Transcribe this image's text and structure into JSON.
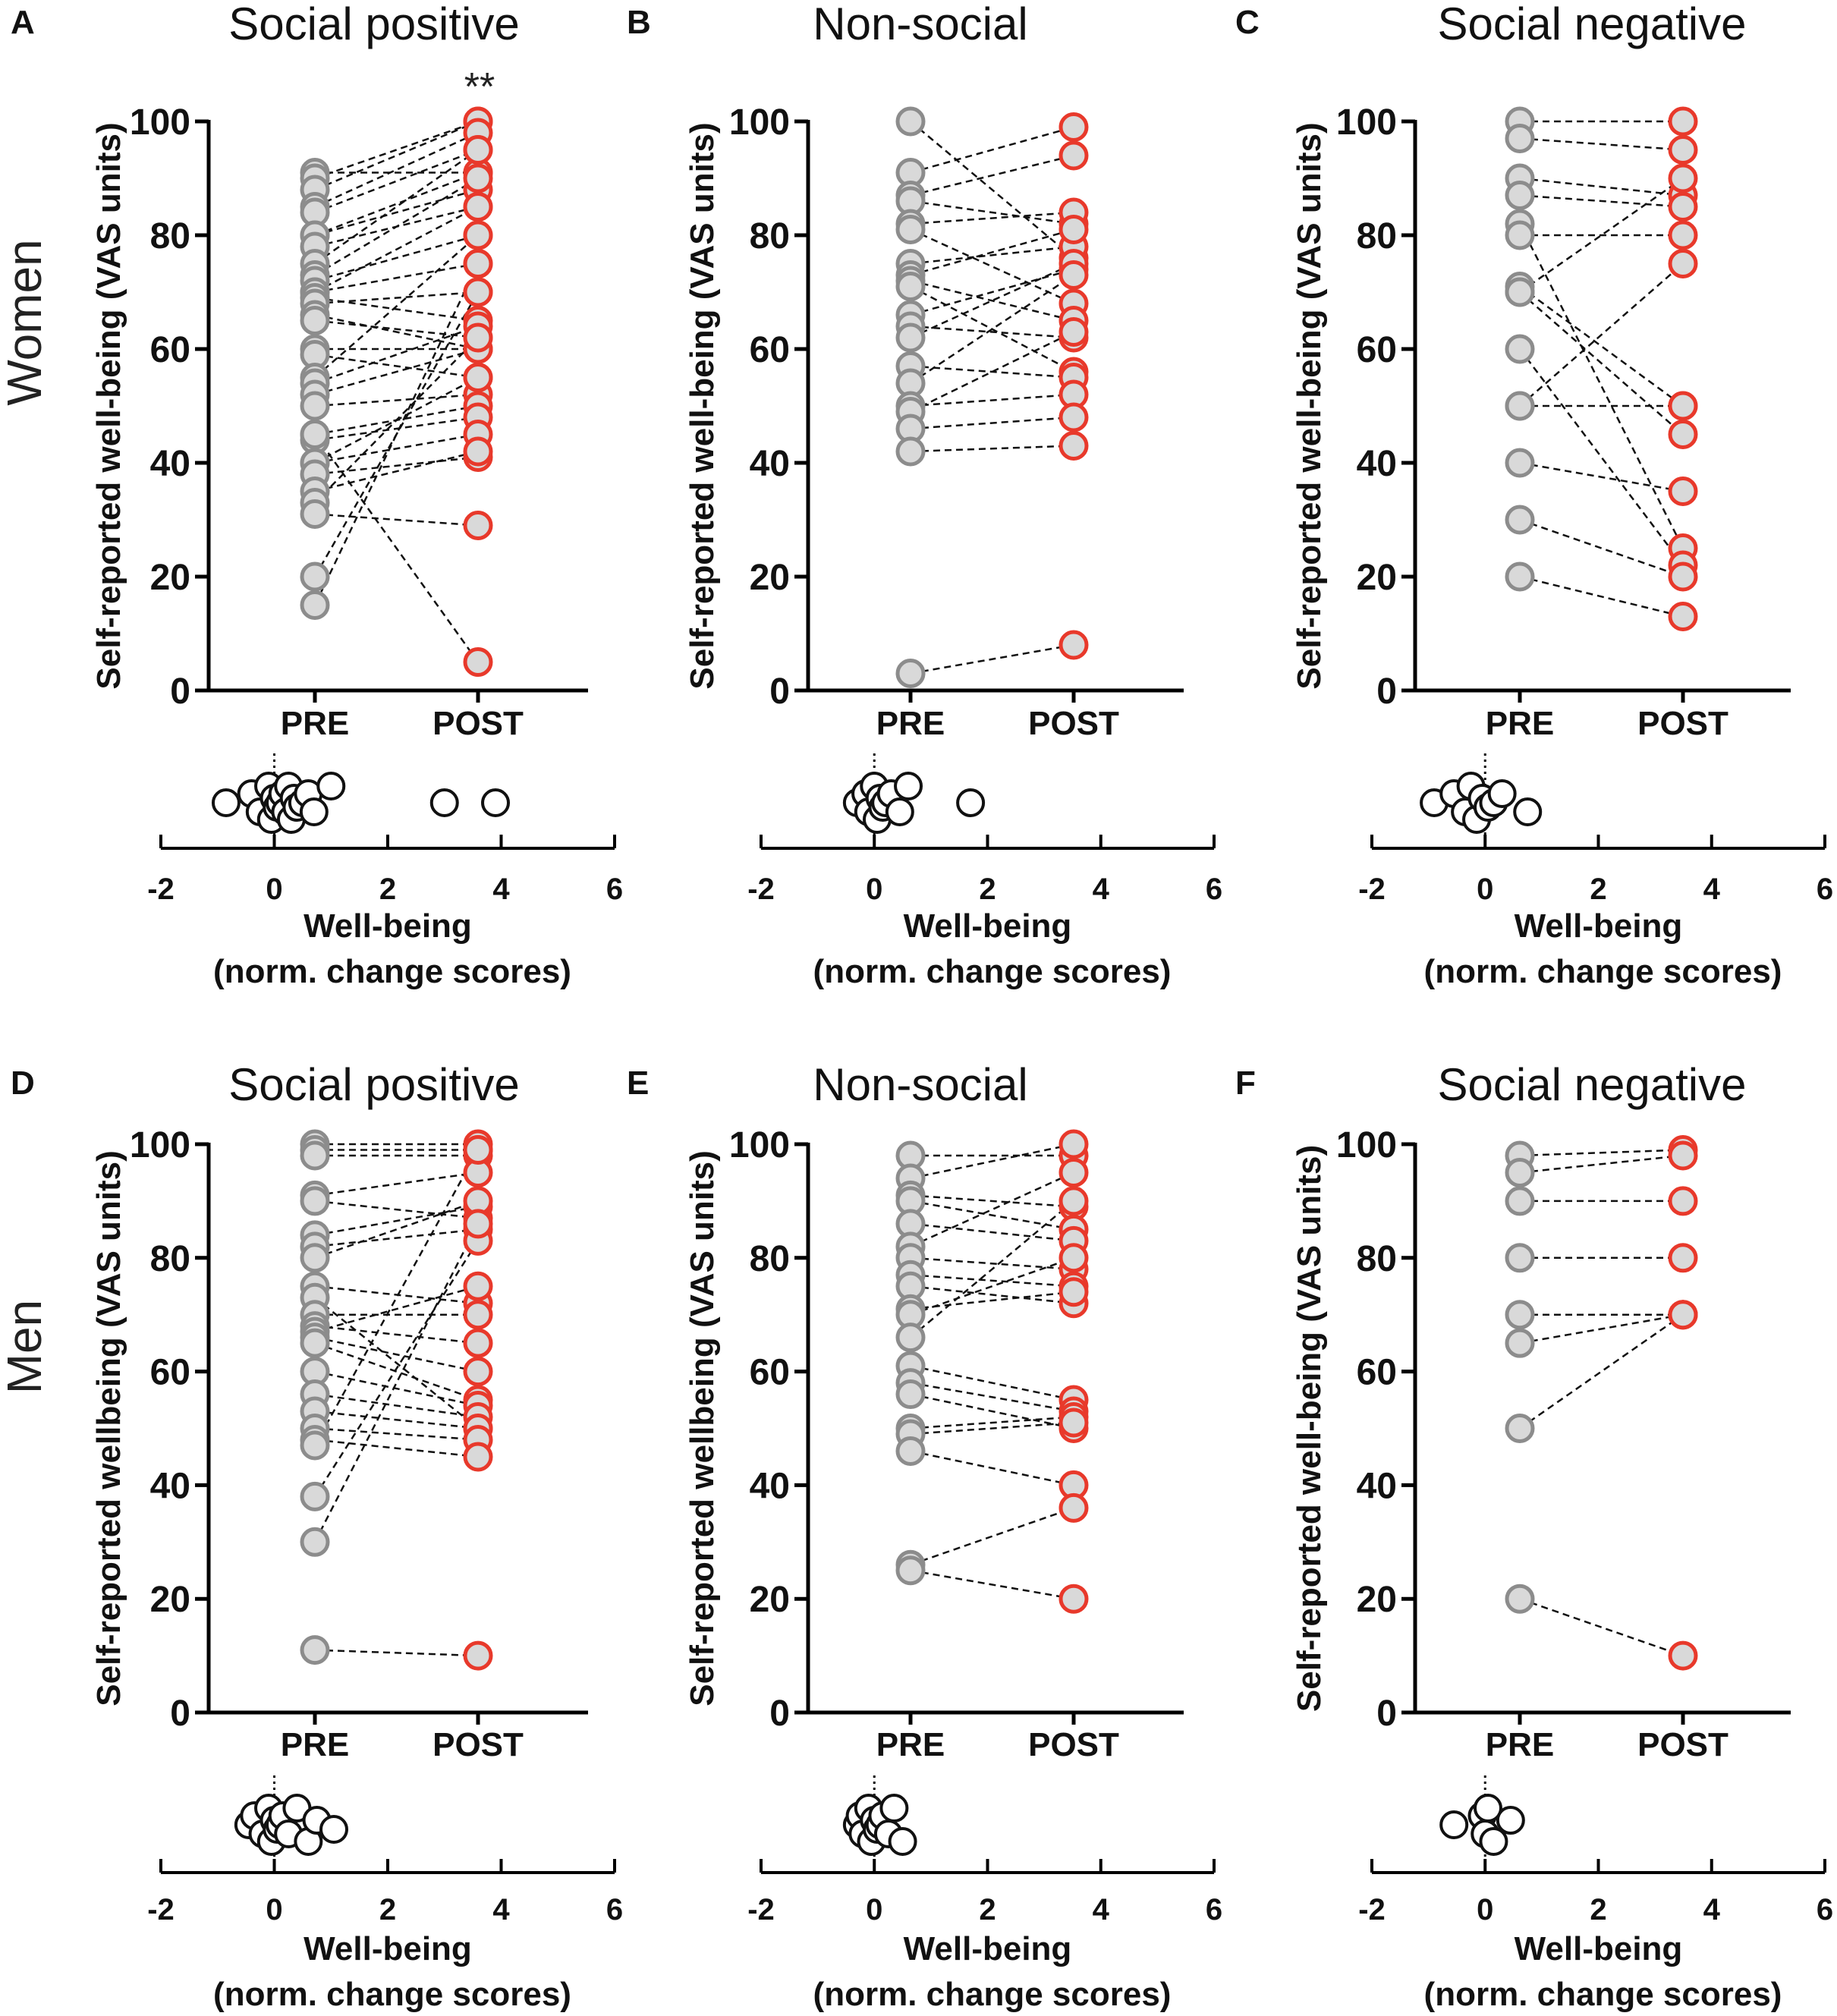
{
  "row_labels": [
    "Women",
    "Men"
  ],
  "chart_data": [
    {
      "type": "paired-dot",
      "panel": "A",
      "title": "Social positive",
      "ylabel": "Self-reported well-being (VAS units)",
      "categories": [
        "PRE",
        "POST"
      ],
      "ylim": [
        0,
        100
      ],
      "yticks": [
        0,
        20,
        40,
        60,
        80,
        100
      ],
      "significance": "**",
      "pairs": [
        [
          91,
          91
        ],
        [
          90,
          100
        ],
        [
          88,
          100
        ],
        [
          85,
          98
        ],
        [
          84,
          95
        ],
        [
          80,
          88
        ],
        [
          80,
          91
        ],
        [
          78,
          85
        ],
        [
          75,
          95
        ],
        [
          73,
          90
        ],
        [
          72,
          80
        ],
        [
          70,
          75
        ],
        [
          70,
          85
        ],
        [
          69,
          65
        ],
        [
          68,
          70
        ],
        [
          66,
          60
        ],
        [
          65,
          62
        ],
        [
          60,
          60
        ],
        [
          59,
          55
        ],
        [
          55,
          80
        ],
        [
          54,
          64
        ],
        [
          52,
          60
        ],
        [
          50,
          52
        ],
        [
          45,
          50
        ],
        [
          44,
          48
        ],
        [
          40,
          55
        ],
        [
          40,
          45
        ],
        [
          38,
          41
        ],
        [
          35,
          42
        ],
        [
          33,
          62
        ],
        [
          31,
          29
        ],
        [
          20,
          70
        ],
        [
          15,
          75
        ],
        [
          45,
          5
        ]
      ],
      "change_scores": [
        -0.85,
        -0.4,
        -0.25,
        -0.1,
        -0.05,
        0,
        0.05,
        0.1,
        0.15,
        0.2,
        0.25,
        0.3,
        0.35,
        0.4,
        0.5,
        0.6,
        0.7,
        1.0,
        3.0,
        3.9
      ],
      "xlabel": "Well-being",
      "xlabel2": "(norm. change scores)",
      "xticks": [
        -2,
        0,
        2,
        4,
        6
      ]
    },
    {
      "type": "paired-dot",
      "panel": "B",
      "title": "Non-social",
      "ylabel": "Self-reported well-being (VAS units)",
      "categories": [
        "PRE",
        "POST"
      ],
      "ylim": [
        0,
        100
      ],
      "yticks": [
        0,
        20,
        40,
        60,
        80,
        100
      ],
      "pairs": [
        [
          100,
          76
        ],
        [
          91,
          99
        ],
        [
          87,
          94
        ],
        [
          86,
          82
        ],
        [
          82,
          84
        ],
        [
          81,
          68
        ],
        [
          75,
          78
        ],
        [
          73,
          81
        ],
        [
          72,
          65
        ],
        [
          71,
          56
        ],
        [
          66,
          74
        ],
        [
          64,
          62
        ],
        [
          62,
          75
        ],
        [
          57,
          55
        ],
        [
          54,
          73
        ],
        [
          50,
          52
        ],
        [
          49,
          63
        ],
        [
          46,
          48
        ],
        [
          42,
          43
        ],
        [
          3,
          8
        ]
      ],
      "change_scores": [
        -0.3,
        -0.15,
        -0.1,
        0,
        0.05,
        0.1,
        0.15,
        0.2,
        0.3,
        0.45,
        0.6,
        1.7
      ],
      "xlabel": "Well-being",
      "xlabel2": "(norm. change scores)",
      "xticks": [
        -2,
        0,
        2,
        4,
        6
      ]
    },
    {
      "type": "paired-dot",
      "panel": "C",
      "title": "Social negative",
      "ylabel": "Self-reported well-being (VAS units)",
      "categories": [
        "PRE",
        "POST"
      ],
      "ylim": [
        0,
        100
      ],
      "yticks": [
        0,
        20,
        40,
        60,
        80,
        100
      ],
      "pairs": [
        [
          100,
          100
        ],
        [
          97,
          95
        ],
        [
          90,
          87
        ],
        [
          87,
          85
        ],
        [
          82,
          25
        ],
        [
          80,
          80
        ],
        [
          71,
          50
        ],
        [
          70,
          90
        ],
        [
          70,
          45
        ],
        [
          60,
          22
        ],
        [
          50,
          50
        ],
        [
          50,
          75
        ],
        [
          40,
          35
        ],
        [
          30,
          20
        ],
        [
          20,
          13
        ]
      ],
      "change_scores": [
        -0.9,
        -0.55,
        -0.35,
        -0.25,
        -0.15,
        -0.05,
        0.05,
        0.15,
        0.3,
        0.75
      ],
      "xlabel": "Well-being",
      "xlabel2": "(norm. change scores)",
      "xticks": [
        -2,
        0,
        2,
        4,
        6
      ]
    },
    {
      "type": "paired-dot",
      "panel": "D",
      "title": "Social positive",
      "ylabel": "Self-reported wellbeing (VAS units)",
      "categories": [
        "PRE",
        "POST"
      ],
      "ylim": [
        0,
        100
      ],
      "yticks": [
        0,
        20,
        40,
        60,
        80,
        100
      ],
      "pairs": [
        [
          100,
          100
        ],
        [
          99,
          99
        ],
        [
          98,
          98
        ],
        [
          91,
          95
        ],
        [
          90,
          87
        ],
        [
          84,
          89
        ],
        [
          82,
          85
        ],
        [
          80,
          90
        ],
        [
          75,
          72
        ],
        [
          73,
          50
        ],
        [
          70,
          70
        ],
        [
          68,
          65
        ],
        [
          67,
          75
        ],
        [
          66,
          60
        ],
        [
          65,
          55
        ],
        [
          60,
          54
        ],
        [
          56,
          52
        ],
        [
          53,
          50
        ],
        [
          50,
          48
        ],
        [
          48,
          45
        ],
        [
          47,
          99
        ],
        [
          38,
          83
        ],
        [
          30,
          86
        ],
        [
          11,
          10
        ]
      ],
      "change_scores": [
        -0.45,
        -0.35,
        -0.2,
        -0.1,
        -0.05,
        0,
        0.05,
        0.1,
        0.15,
        0.25,
        0.4,
        0.6,
        0.75,
        1.05
      ],
      "xlabel": "Well-being",
      "xlabel2": "(norm. change scores)",
      "xticks": [
        -2,
        0,
        2,
        4,
        6
      ]
    },
    {
      "type": "paired-dot",
      "panel": "E",
      "title": "Non-social",
      "ylabel": "Self-reported wellbeing (VAS units)",
      "categories": [
        "PRE",
        "POST"
      ],
      "ylim": [
        0,
        100
      ],
      "yticks": [
        0,
        20,
        40,
        60,
        80,
        100
      ],
      "pairs": [
        [
          98,
          98
        ],
        [
          94,
          100
        ],
        [
          91,
          89
        ],
        [
          90,
          85
        ],
        [
          86,
          83
        ],
        [
          82,
          95
        ],
        [
          80,
          78
        ],
        [
          77,
          75
        ],
        [
          75,
          72
        ],
        [
          71,
          74
        ],
        [
          70,
          80
        ],
        [
          66,
          90
        ],
        [
          61,
          55
        ],
        [
          58,
          53
        ],
        [
          56,
          50
        ],
        [
          50,
          52
        ],
        [
          49,
          51
        ],
        [
          46,
          40
        ],
        [
          26,
          36
        ],
        [
          25,
          20
        ]
      ],
      "change_scores": [
        -0.3,
        -0.25,
        -0.2,
        -0.1,
        -0.05,
        0,
        0.05,
        0.1,
        0.15,
        0.25,
        0.35,
        0.5
      ],
      "xlabel": "Well-being",
      "xlabel2": "(norm. change scores)",
      "xticks": [
        -2,
        0,
        2,
        4,
        6
      ]
    },
    {
      "type": "paired-dot",
      "panel": "F",
      "title": "Social negative",
      "ylabel": "Self-reported well-being (VAS units)",
      "categories": [
        "PRE",
        "POST"
      ],
      "ylim": [
        0,
        100
      ],
      "yticks": [
        0,
        20,
        40,
        60,
        80,
        100
      ],
      "pairs": [
        [
          98,
          99
        ],
        [
          95,
          98
        ],
        [
          90,
          90
        ],
        [
          80,
          80
        ],
        [
          70,
          70
        ],
        [
          65,
          70
        ],
        [
          50,
          70
        ],
        [
          20,
          10
        ]
      ],
      "change_scores": [
        -0.55,
        -0.05,
        0,
        0.05,
        0.15,
        0.45
      ],
      "xlabel": "Well-being",
      "xlabel2": "(norm. change scores)",
      "xticks": [
        -2,
        0,
        2,
        4,
        6
      ]
    }
  ]
}
